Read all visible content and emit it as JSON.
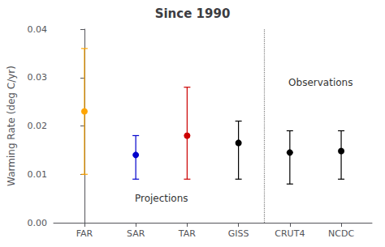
{
  "chart_data": {
    "type": "scatter",
    "title": "Since 1990",
    "ylabel": "Warming Rate (deg C/yr)",
    "categories": [
      "FAR",
      "SAR",
      "TAR",
      "GISS",
      "CRUT4",
      "NCDC"
    ],
    "values": [
      0.023,
      0.014,
      0.018,
      0.0165,
      0.0145,
      0.0148
    ],
    "lower": [
      0.01,
      0.009,
      0.009,
      0.009,
      0.008,
      0.009
    ],
    "upper": [
      0.036,
      0.018,
      0.028,
      0.021,
      0.019,
      0.019
    ],
    "colors": [
      "#FFA500",
      "#0000CC",
      "#CC0000",
      "#000000",
      "#000000",
      "#000000"
    ],
    "marker": "circle",
    "divider_x": 3.5,
    "annotations": [
      {
        "text": "Projections",
        "x": 1.5,
        "y": 0.004
      },
      {
        "text": "Observations",
        "x": 4.6,
        "y": 0.028
      }
    ],
    "ylim": [
      0.0,
      0.04
    ],
    "yticks": [
      {
        "value": 0.0,
        "label": "0.00"
      },
      {
        "value": 0.01,
        "label": "0.01"
      },
      {
        "value": 0.02,
        "label": "0.02"
      },
      {
        "value": 0.03,
        "label": "0.03"
      },
      {
        "value": 0.04,
        "label": "0.04"
      }
    ],
    "grid": false
  }
}
